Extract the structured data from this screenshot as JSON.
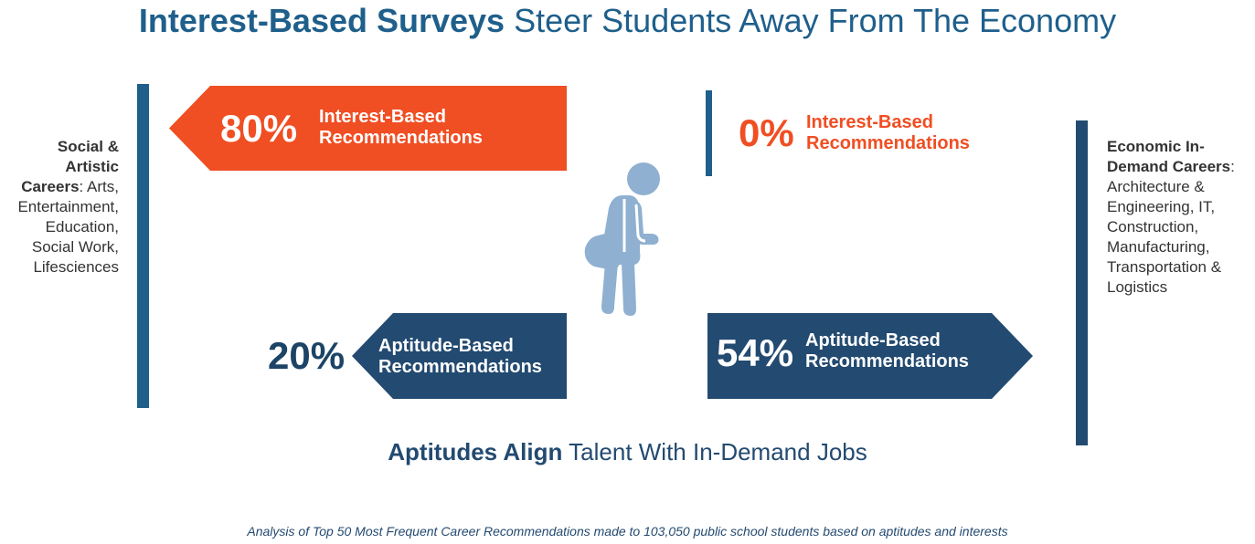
{
  "title": {
    "bold": "Interest-Based Surveys",
    "rest": "Steer Students Away From The Economy"
  },
  "left_side": {
    "heading_line1": "Social &",
    "heading_line2": "Artistic",
    "heading_line3": "Careers",
    "list": ": Arts, Entertainment, Education, Social Work, Lifesciences"
  },
  "right_side": {
    "heading_line1": "Economic In-",
    "heading_line2": "Demand Careers",
    "list_line1": ": ",
    "list_line2": "Architecture &",
    "list_line3": "Engineering, IT,",
    "list_line4": "Construction,",
    "list_line5": "Manufacturing,",
    "list_line6": "Transportation &",
    "list_line7": "Logistics"
  },
  "stats": {
    "left_interest": {
      "pct": "80%",
      "line1": "Interest-Based",
      "line2": "Recommendations"
    },
    "right_interest": {
      "pct": "0%",
      "line1": "Interest-Based",
      "line2": "Recommendations"
    },
    "left_aptitude": {
      "pct": "20%",
      "line1": "Aptitude-Based",
      "line2": "Recommendations"
    },
    "right_aptitude": {
      "pct": "54%",
      "line1": "Aptitude-Based",
      "line2": "Recommendations"
    }
  },
  "subtitle": {
    "bold": "Aptitudes Align",
    "rest": "Talent With In-Demand Jobs"
  },
  "footnote": "Analysis of Top 50 Most Frequent Career Recommendations made to 103,050 public school students based on aptitudes and interests",
  "colors": {
    "orange": "#f04e23",
    "navy": "#234a70",
    "blue": "#1f5f8b",
    "figure": "#8fb0d0"
  },
  "icons": [
    "student-figure-icon"
  ]
}
